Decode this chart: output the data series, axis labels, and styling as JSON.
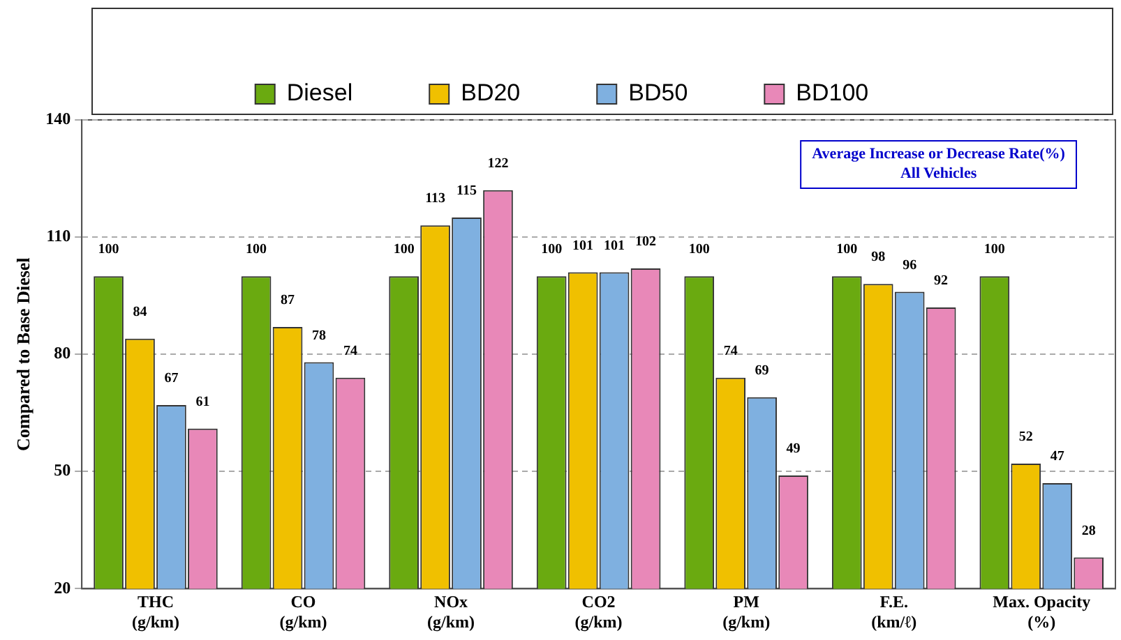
{
  "chart_data": {
    "type": "bar",
    "ylabel": "Compared to Base Diesel",
    "categories": [
      "THC\n(g/km)",
      "CO\n(g/km)",
      "NOx\n(g/km)",
      "CO2\n(g/km)",
      "PM\n(g/km)",
      "F.E.\n(km/ℓ)",
      "Max. Opacity\n(%)"
    ],
    "series": [
      {
        "name": "Diesel",
        "color": "#6aaa10",
        "values": [
          100,
          100,
          100,
          100,
          100,
          100,
          100
        ]
      },
      {
        "name": "BD20",
        "color": "#f0c000",
        "values": [
          84,
          87,
          113,
          101,
          74,
          98,
          52
        ]
      },
      {
        "name": "BD50",
        "color": "#7fb0e0",
        "values": [
          67,
          78,
          115,
          101,
          69,
          96,
          47
        ]
      },
      {
        "name": "BD100",
        "color": "#e888b8",
        "values": [
          61,
          74,
          122,
          102,
          49,
          92,
          28
        ]
      }
    ],
    "ylim": [
      20,
      140
    ],
    "yticks": [
      20,
      50,
      80,
      110,
      140
    ],
    "grid": "y",
    "legend": "top",
    "data_labels": true,
    "annotations": [
      "Average Increase or Decrease Rate(%)\nAll Vehicles"
    ]
  }
}
